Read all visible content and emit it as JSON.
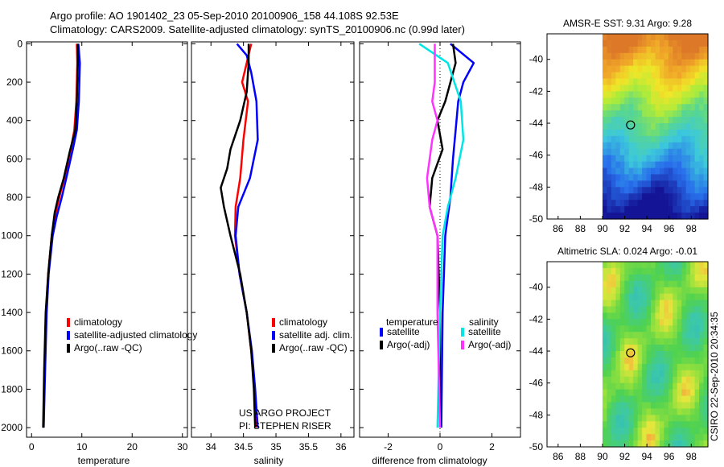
{
  "header": {
    "line1": "Argo profile: AO 1901402_23 05-Sep-2010 20100906_158 44.108S 92.53E",
    "line2": "Climatology: CARS2009. Satellite-adjusted climatology: synTS_20100906.nc (0.99d later)"
  },
  "colors": {
    "clim": "#ff0000",
    "sat": "#0000ff",
    "argo": "#000000",
    "sal_sat": "#00e5e5",
    "sal_argo": "#ff33ff"
  },
  "chart_data": [
    {
      "type": "line",
      "xlabel": "temperature",
      "xlim": [
        -1,
        31
      ],
      "ylim": [
        2050,
        -10
      ],
      "xticks": [
        0,
        10,
        20,
        30
      ],
      "yticks": [
        0,
        200,
        400,
        600,
        800,
        1000,
        1200,
        1400,
        1600,
        1800,
        2000
      ],
      "series": [
        {
          "name": "climatology",
          "color": "#ff0000",
          "points": [
            [
              9.0,
              0
            ],
            [
              9.1,
              100
            ],
            [
              8.9,
              300
            ],
            [
              8.5,
              450
            ],
            [
              7.8,
              550
            ],
            [
              6.5,
              700
            ],
            [
              5.7,
              780
            ],
            [
              4.8,
              880
            ],
            [
              4.0,
              1000
            ],
            [
              3.3,
              1200
            ],
            [
              2.9,
              1400
            ],
            [
              2.6,
              1700
            ],
            [
              2.4,
              2000
            ]
          ]
        },
        {
          "name": "satellite-adjusted climatology",
          "color": "#0000ff",
          "points": [
            [
              9.3,
              0
            ],
            [
              9.6,
              100
            ],
            [
              9.4,
              300
            ],
            [
              9.0,
              450
            ],
            [
              8.2,
              550
            ],
            [
              6.9,
              700
            ],
            [
              6.0,
              800
            ],
            [
              5.0,
              900
            ],
            [
              4.2,
              1000
            ],
            [
              3.4,
              1200
            ],
            [
              3.0,
              1400
            ],
            [
              2.7,
              1700
            ],
            [
              2.4,
              2000
            ]
          ]
        },
        {
          "name": "Argo(..raw -QC)",
          "color": "#000000",
          "points": [
            [
              9.2,
              0
            ],
            [
              9.2,
              100
            ],
            [
              9.0,
              300
            ],
            [
              8.7,
              450
            ],
            [
              7.6,
              560
            ],
            [
              6.4,
              700
            ],
            [
              5.3,
              800
            ],
            [
              4.6,
              880
            ],
            [
              4.0,
              1000
            ],
            [
              3.3,
              1200
            ],
            [
              2.8,
              1400
            ],
            [
              2.5,
              1700
            ],
            [
              2.3,
              2000
            ]
          ]
        }
      ],
      "legend": [
        "climatology",
        "satellite-adjusted climatology",
        "Argo(..raw -QC)"
      ]
    },
    {
      "type": "line",
      "xlabel": "salinity",
      "xlim": [
        33.7,
        36.2
      ],
      "ylim": [
        2050,
        -10
      ],
      "xticks": [
        34,
        34.5,
        35,
        35.5,
        36
      ],
      "series": [
        {
          "name": "climatology",
          "color": "#ff0000",
          "points": [
            [
              34.62,
              0
            ],
            [
              34.55,
              100
            ],
            [
              34.48,
              200
            ],
            [
              34.57,
              300
            ],
            [
              34.5,
              500
            ],
            [
              34.45,
              700
            ],
            [
              34.38,
              850
            ],
            [
              34.37,
              1000
            ],
            [
              34.44,
              1200
            ],
            [
              34.55,
              1400
            ],
            [
              34.62,
              1600
            ],
            [
              34.67,
              1800
            ],
            [
              34.7,
              2000
            ]
          ]
        },
        {
          "name": "satellite adj. clim.",
          "color": "#0000ff",
          "points": [
            [
              34.4,
              0
            ],
            [
              34.55,
              60
            ],
            [
              34.62,
              150
            ],
            [
              34.7,
              300
            ],
            [
              34.72,
              500
            ],
            [
              34.6,
              700
            ],
            [
              34.42,
              850
            ],
            [
              34.38,
              1000
            ],
            [
              34.44,
              1200
            ],
            [
              34.55,
              1400
            ],
            [
              34.63,
              1600
            ],
            [
              34.68,
              1800
            ],
            [
              34.72,
              2000
            ]
          ]
        },
        {
          "name": "Argo(..raw -QC)",
          "color": "#000000",
          "points": [
            [
              34.58,
              0
            ],
            [
              34.58,
              100
            ],
            [
              34.55,
              250
            ],
            [
              34.45,
              400
            ],
            [
              34.3,
              550
            ],
            [
              34.25,
              650
            ],
            [
              34.15,
              750
            ],
            [
              34.2,
              850
            ],
            [
              34.3,
              1000
            ],
            [
              34.45,
              1200
            ],
            [
              34.55,
              1400
            ],
            [
              34.62,
              1600
            ],
            [
              34.66,
              1800
            ],
            [
              34.68,
              2000
            ]
          ]
        }
      ],
      "legend": [
        "climatology",
        "satellite adj. clim.",
        "Argo(..raw -QC)"
      ],
      "annotation": [
        "US ARGO PROJECT",
        "PI: STEPHEN RISER"
      ]
    },
    {
      "type": "line",
      "xlabel": "difference from climatology",
      "xlim": [
        -3.1,
        3.1
      ],
      "ylim": [
        2050,
        -10
      ],
      "xticks": [
        -2,
        0,
        2
      ],
      "zero_line": true,
      "series": [
        {
          "name": "temperature satellite",
          "color": "#0000ff",
          "points": [
            [
              0.4,
              0
            ],
            [
              1.3,
              100
            ],
            [
              0.9,
              200
            ],
            [
              0.7,
              300
            ],
            [
              0.6,
              450
            ],
            [
              0.5,
              600
            ],
            [
              0.4,
              800
            ],
            [
              0.2,
              1000
            ],
            [
              0.1,
              1400
            ],
            [
              0.05,
              2000
            ]
          ]
        },
        {
          "name": "temperature Argo(-adj)",
          "color": "#000000",
          "points": [
            [
              0.5,
              0
            ],
            [
              0.6,
              100
            ],
            [
              0.2,
              300
            ],
            [
              -0.1,
              400
            ],
            [
              0.1,
              550
            ],
            [
              -0.3,
              700
            ],
            [
              -0.4,
              850
            ],
            [
              -0.1,
              1000
            ],
            [
              0.0,
              1400
            ],
            [
              0.0,
              2000
            ]
          ]
        },
        {
          "name": "salinity satellite",
          "color": "#00e5e5",
          "points": [
            [
              -0.8,
              0
            ],
            [
              0.3,
              100
            ],
            [
              0.8,
              300
            ],
            [
              0.9,
              500
            ],
            [
              0.6,
              700
            ],
            [
              0.3,
              850
            ],
            [
              0.1,
              1000
            ],
            [
              0.0,
              1400
            ],
            [
              -0.1,
              2000
            ]
          ]
        },
        {
          "name": "salinity Argo(-adj)",
          "color": "#ff33ff",
          "points": [
            [
              -0.2,
              0
            ],
            [
              -0.2,
              200
            ],
            [
              -0.3,
              300
            ],
            [
              -0.1,
              400
            ],
            [
              -0.3,
              500
            ],
            [
              -0.5,
              700
            ],
            [
              -0.4,
              850
            ],
            [
              -0.1,
              1000
            ],
            [
              -0.1,
              1400
            ],
            [
              0.0,
              2000
            ]
          ]
        }
      ],
      "legend_headers": [
        "temperature",
        "salinity"
      ],
      "legend": [
        "satellite",
        "Argo(-adj)",
        "satellite",
        "Argo(-adj)"
      ]
    },
    {
      "type": "heatmap",
      "title": "AMSR-E SST: 9.31 Argo: 9.28",
      "xticks": [
        86,
        88,
        90,
        92,
        94,
        96,
        98
      ],
      "yticks": [
        -40,
        -42,
        -44,
        -46,
        -48,
        -50
      ],
      "xlim": [
        85,
        99.5
      ],
      "ylim": [
        -50,
        -38.4
      ],
      "data_xrange": [
        90,
        99.5
      ],
      "marker": [
        92.53,
        -44.108
      ]
    },
    {
      "type": "heatmap",
      "title": "Altimetric SLA: 0.024 Argo: -0.01",
      "xticks": [
        86,
        88,
        90,
        92,
        94,
        96,
        98
      ],
      "yticks": [
        -40,
        -42,
        -44,
        -46,
        -48,
        -50
      ],
      "xlim": [
        85,
        99.5
      ],
      "ylim": [
        -50,
        -38.4
      ],
      "data_xrange": [
        90,
        99.5
      ],
      "marker": [
        92.53,
        -44.108
      ]
    }
  ],
  "footer": {
    "credit": "CSIRO 22-Sep-2010 20:34:35"
  }
}
